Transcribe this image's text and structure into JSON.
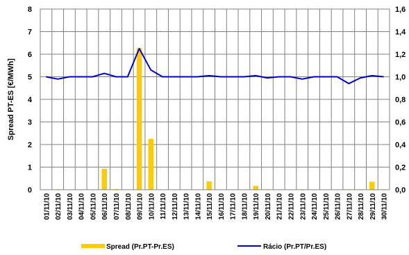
{
  "chart_data": {
    "type": "bar",
    "categories": [
      "01/11/10",
      "02/11/10",
      "03/11/10",
      "04/11/10",
      "05/11/10",
      "06/11/10",
      "07/11/10",
      "08/11/10",
      "09/11/10",
      "10/11/10",
      "11/11/10",
      "12/11/10",
      "13/11/10",
      "14/11/10",
      "15/11/10",
      "16/11/10",
      "17/11/10",
      "18/11/10",
      "19/11/10",
      "20/11/10",
      "21/11/10",
      "22/11/10",
      "23/11/10",
      "24/11/10",
      "25/11/10",
      "26/11/10",
      "27/11/10",
      "28/11/10",
      "29/11/10",
      "30/11/10"
    ],
    "series": [
      {
        "name": "Spread (Pr.PT-Pr.ES)",
        "type": "bar",
        "axis": "left",
        "color": "#FFCC00",
        "values": [
          0,
          0.02,
          0,
          0,
          0,
          0.93,
          0.03,
          0,
          6.27,
          2.25,
          0,
          0,
          0,
          0,
          0.37,
          0,
          0,
          0,
          0.17,
          0.02,
          0,
          0,
          0.02,
          0,
          0,
          0,
          0.02,
          0.02,
          0.35,
          0.02
        ]
      },
      {
        "name": "Rácio (Pr.PT/Pr.ES)",
        "type": "line",
        "axis": "right",
        "color": "#0000CC",
        "values": [
          1.0,
          0.98,
          1.0,
          1.0,
          1.0,
          1.03,
          1.0,
          1.0,
          1.25,
          1.06,
          1.0,
          1.0,
          1.0,
          1.0,
          1.01,
          1.0,
          1.0,
          1.0,
          1.01,
          0.99,
          1.0,
          1.0,
          0.98,
          1.0,
          1.0,
          1.0,
          0.94,
          0.99,
          1.01,
          1.0
        ]
      }
    ],
    "ylabel": "Spread PT-ES [€/MWh]",
    "ylim": [
      0,
      8
    ],
    "yticks": [
      "0",
      "1",
      "2",
      "3",
      "4",
      "5",
      "6",
      "7",
      "8"
    ],
    "y2lim": [
      0,
      1.6
    ],
    "y2ticks": [
      "0,0",
      "0,2",
      "0,4",
      "0,6",
      "0,8",
      "1,0",
      "1,2",
      "1,4",
      "1,6"
    ],
    "grid": true,
    "legend_position": "bottom"
  }
}
